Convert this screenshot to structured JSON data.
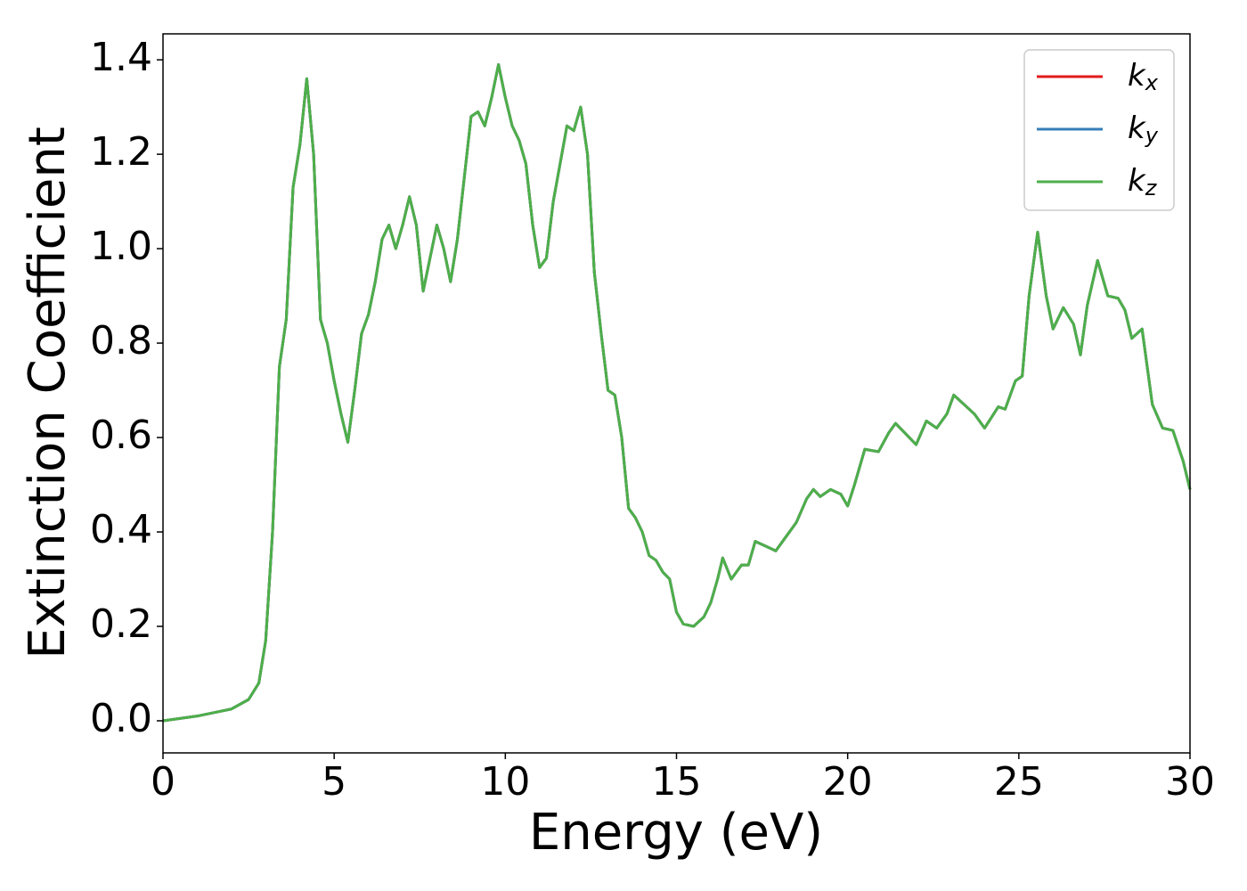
{
  "chart_data": {
    "type": "line",
    "xlabel": "Energy (eV)",
    "ylabel": "Extinction Coefficient",
    "x": [
      0,
      1,
      2,
      2.5,
      2.8,
      3.0,
      3.2,
      3.4,
      3.6,
      3.8,
      4.0,
      4.2,
      4.4,
      4.6,
      4.8,
      5.0,
      5.2,
      5.4,
      5.6,
      5.8,
      6.0,
      6.2,
      6.4,
      6.6,
      6.8,
      7.0,
      7.2,
      7.4,
      7.6,
      7.8,
      8.0,
      8.2,
      8.4,
      8.6,
      8.8,
      9.0,
      9.2,
      9.4,
      9.6,
      9.8,
      10.0,
      10.2,
      10.4,
      10.6,
      10.8,
      11.0,
      11.2,
      11.4,
      11.6,
      11.8,
      12.0,
      12.2,
      12.4,
      12.6,
      12.8,
      13.0,
      13.2,
      13.4,
      13.6,
      13.8,
      14.0,
      14.2,
      14.4,
      14.6,
      14.8,
      15.0,
      15.2,
      15.5,
      15.8,
      16.0,
      16.2,
      16.35,
      16.6,
      16.9,
      17.1,
      17.3,
      17.6,
      17.9,
      18.2,
      18.5,
      18.8,
      19.0,
      19.2,
      19.5,
      19.8,
      20.0,
      20.2,
      20.5,
      20.9,
      21.2,
      21.4,
      21.8,
      22.0,
      22.3,
      22.6,
      22.9,
      23.1,
      23.4,
      23.7,
      24.0,
      24.4,
      24.6,
      24.9,
      25.1,
      25.3,
      25.55,
      25.8,
      26.0,
      26.3,
      26.6,
      26.8,
      27.0,
      27.3,
      27.6,
      27.9,
      28.1,
      28.3,
      28.6,
      28.9,
      29.2,
      29.5,
      29.8,
      30.0
    ],
    "series": [
      {
        "name": "kx",
        "color": "#e41a1c",
        "values": [
          0.0,
          0.01,
          0.025,
          0.045,
          0.08,
          0.17,
          0.4,
          0.75,
          0.85,
          1.13,
          1.22,
          1.36,
          1.2,
          0.85,
          0.8,
          0.72,
          0.65,
          0.59,
          0.7,
          0.82,
          0.86,
          0.93,
          1.02,
          1.05,
          1.0,
          1.05,
          1.11,
          1.05,
          0.91,
          0.98,
          1.05,
          1.0,
          0.93,
          1.02,
          1.15,
          1.28,
          1.29,
          1.26,
          1.32,
          1.39,
          1.32,
          1.26,
          1.23,
          1.18,
          1.05,
          0.96,
          0.98,
          1.1,
          1.18,
          1.26,
          1.25,
          1.3,
          1.2,
          0.95,
          0.82,
          0.7,
          0.69,
          0.6,
          0.45,
          0.43,
          0.4,
          0.35,
          0.34,
          0.315,
          0.3,
          0.23,
          0.205,
          0.2,
          0.22,
          0.25,
          0.3,
          0.345,
          0.3,
          0.33,
          0.33,
          0.38,
          0.37,
          0.36,
          0.39,
          0.42,
          0.47,
          0.49,
          0.475,
          0.49,
          0.48,
          0.455,
          0.5,
          0.575,
          0.57,
          0.61,
          0.63,
          0.6,
          0.585,
          0.635,
          0.62,
          0.65,
          0.69,
          0.67,
          0.65,
          0.62,
          0.665,
          0.66,
          0.72,
          0.73,
          0.9,
          1.035,
          0.9,
          0.83,
          0.875,
          0.84,
          0.775,
          0.88,
          0.975,
          0.9,
          0.895,
          0.87,
          0.81,
          0.83,
          0.67,
          0.62,
          0.615,
          0.55,
          0.49
        ]
      },
      {
        "name": "ky",
        "color": "#377eb8",
        "values": [
          0.0,
          0.01,
          0.025,
          0.045,
          0.08,
          0.17,
          0.4,
          0.75,
          0.85,
          1.13,
          1.22,
          1.36,
          1.2,
          0.85,
          0.8,
          0.72,
          0.65,
          0.59,
          0.7,
          0.82,
          0.86,
          0.93,
          1.02,
          1.05,
          1.0,
          1.05,
          1.11,
          1.05,
          0.91,
          0.98,
          1.05,
          1.0,
          0.93,
          1.02,
          1.15,
          1.28,
          1.29,
          1.26,
          1.32,
          1.39,
          1.32,
          1.26,
          1.23,
          1.18,
          1.05,
          0.96,
          0.98,
          1.1,
          1.18,
          1.26,
          1.25,
          1.3,
          1.2,
          0.95,
          0.82,
          0.7,
          0.69,
          0.6,
          0.45,
          0.43,
          0.4,
          0.35,
          0.34,
          0.315,
          0.3,
          0.23,
          0.205,
          0.2,
          0.22,
          0.25,
          0.3,
          0.345,
          0.3,
          0.33,
          0.33,
          0.38,
          0.37,
          0.36,
          0.39,
          0.42,
          0.47,
          0.49,
          0.475,
          0.49,
          0.48,
          0.455,
          0.5,
          0.575,
          0.57,
          0.61,
          0.63,
          0.6,
          0.585,
          0.635,
          0.62,
          0.65,
          0.69,
          0.67,
          0.65,
          0.62,
          0.665,
          0.66,
          0.72,
          0.73,
          0.9,
          1.035,
          0.9,
          0.83,
          0.875,
          0.84,
          0.775,
          0.88,
          0.975,
          0.9,
          0.895,
          0.87,
          0.81,
          0.83,
          0.67,
          0.62,
          0.615,
          0.55,
          0.49
        ]
      },
      {
        "name": "kz",
        "color": "#4daf4a",
        "values": [
          0.0,
          0.01,
          0.025,
          0.045,
          0.08,
          0.17,
          0.4,
          0.75,
          0.85,
          1.13,
          1.22,
          1.36,
          1.2,
          0.85,
          0.8,
          0.72,
          0.65,
          0.59,
          0.7,
          0.82,
          0.86,
          0.93,
          1.02,
          1.05,
          1.0,
          1.05,
          1.11,
          1.05,
          0.91,
          0.98,
          1.05,
          1.0,
          0.93,
          1.02,
          1.15,
          1.28,
          1.29,
          1.26,
          1.32,
          1.39,
          1.32,
          1.26,
          1.23,
          1.18,
          1.05,
          0.96,
          0.98,
          1.1,
          1.18,
          1.26,
          1.25,
          1.3,
          1.2,
          0.95,
          0.82,
          0.7,
          0.69,
          0.6,
          0.45,
          0.43,
          0.4,
          0.35,
          0.34,
          0.315,
          0.3,
          0.23,
          0.205,
          0.2,
          0.22,
          0.25,
          0.3,
          0.345,
          0.3,
          0.33,
          0.33,
          0.38,
          0.37,
          0.36,
          0.39,
          0.42,
          0.47,
          0.49,
          0.475,
          0.49,
          0.48,
          0.455,
          0.5,
          0.575,
          0.57,
          0.61,
          0.63,
          0.6,
          0.585,
          0.635,
          0.62,
          0.65,
          0.69,
          0.67,
          0.65,
          0.62,
          0.665,
          0.66,
          0.72,
          0.73,
          0.9,
          1.035,
          0.9,
          0.83,
          0.875,
          0.84,
          0.775,
          0.88,
          0.975,
          0.9,
          0.895,
          0.87,
          0.81,
          0.83,
          0.67,
          0.62,
          0.615,
          0.55,
          0.49
        ]
      }
    ],
    "xlim": [
      0,
      30
    ],
    "xticks": [
      0,
      5,
      10,
      15,
      20,
      25,
      30
    ],
    "ylim": [
      -0.068,
      1.455
    ],
    "yticks": [
      {
        "value": 0,
        "label": "0.0"
      },
      0.2,
      0.4,
      0.6,
      0.8,
      {
        "value": 1,
        "label": "1.0"
      },
      1.2,
      1.4
    ],
    "grid": false,
    "legend": "upper right"
  }
}
